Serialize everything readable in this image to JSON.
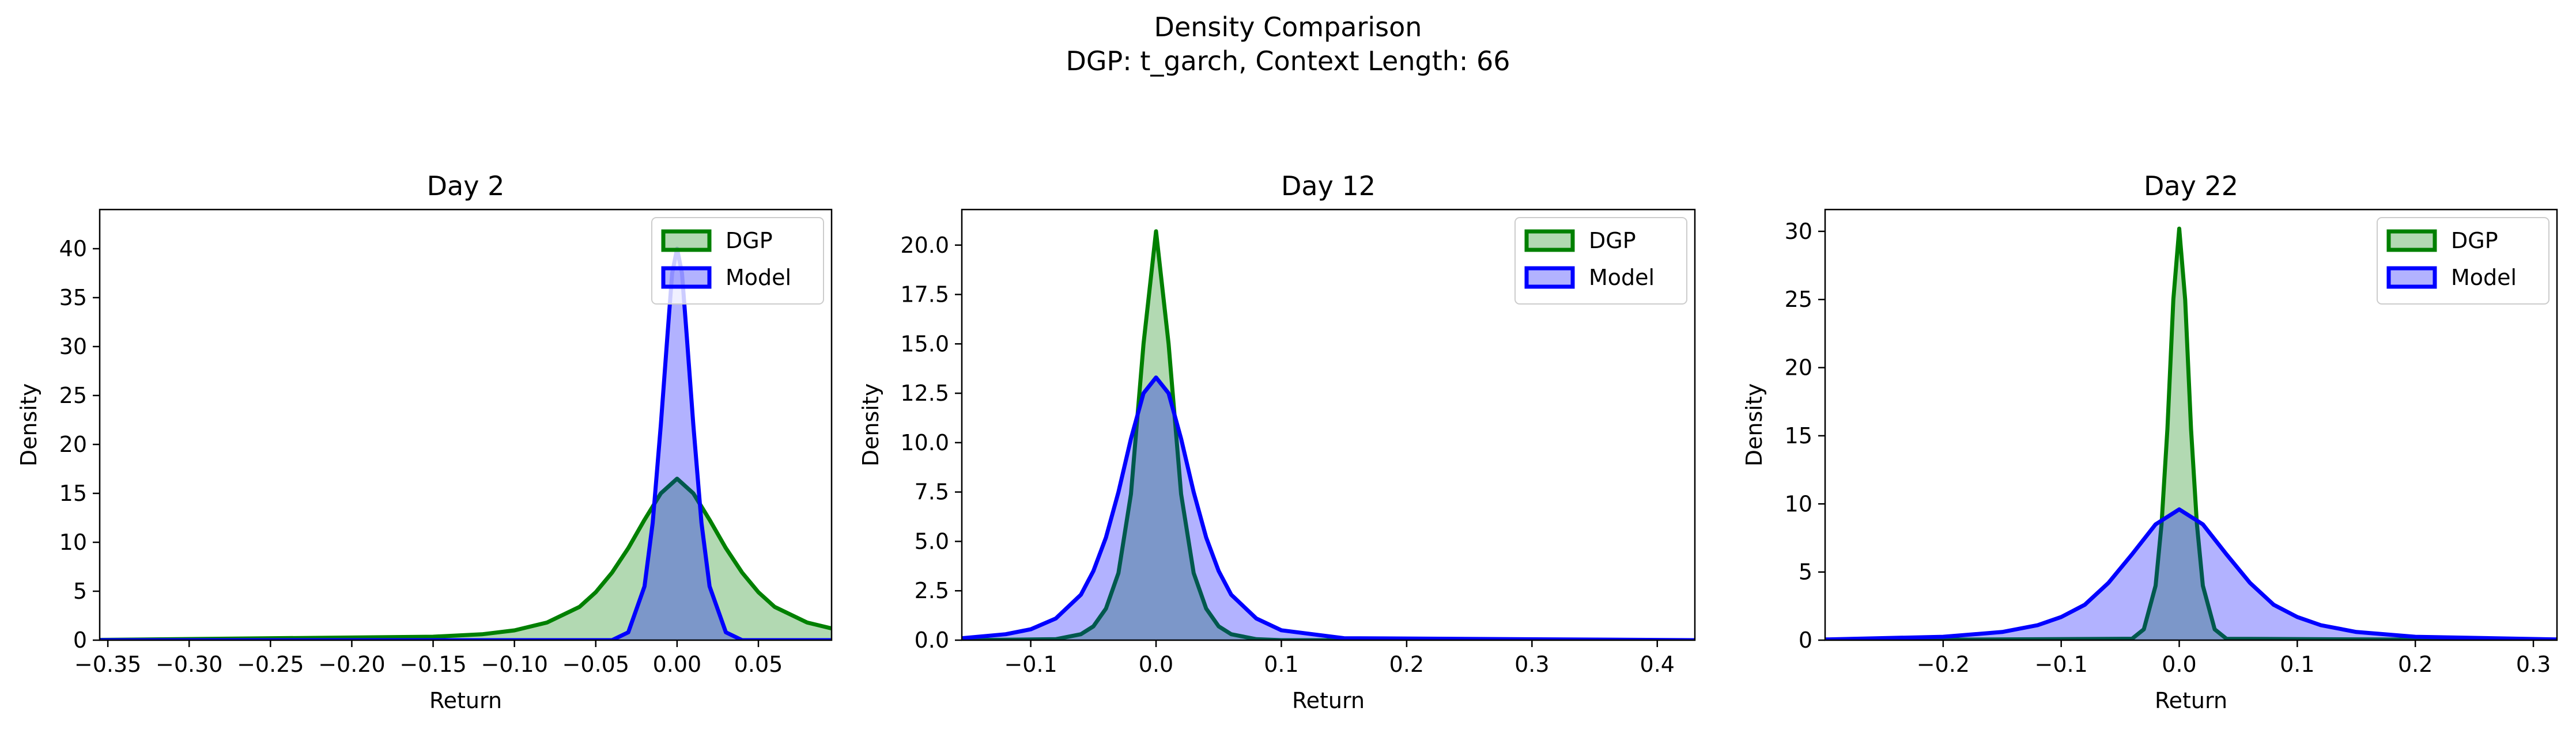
{
  "figure": {
    "title": "Density Comparison",
    "subtitle": "DGP: t_garch, Context Length: 66"
  },
  "chart_data": [
    {
      "type": "area",
      "title": "Day 2",
      "xlabel": "Return",
      "ylabel": "Density",
      "xlim": [
        -0.355,
        0.095
      ],
      "ylim": [
        0,
        44
      ],
      "xticks": [
        -0.35,
        -0.3,
        -0.25,
        -0.2,
        -0.15,
        -0.1,
        -0.05,
        0.0,
        0.05
      ],
      "xtick_labels": [
        "−0.35",
        "−0.30",
        "−0.25",
        "−0.20",
        "−0.15",
        "−0.10",
        "−0.05",
        "0.00",
        "0.05"
      ],
      "yticks": [
        0,
        5,
        10,
        15,
        20,
        25,
        30,
        35,
        40
      ],
      "ytick_labels": [
        "0",
        "5",
        "10",
        "15",
        "20",
        "25",
        "30",
        "35",
        "40"
      ],
      "legend": "upper right",
      "series": [
        {
          "name": "DGP",
          "color": "#008000",
          "fill": "#008000",
          "x": [
            -0.355,
            -0.15,
            -0.12,
            -0.1,
            -0.08,
            -0.06,
            -0.05,
            -0.04,
            -0.03,
            -0.02,
            -0.01,
            0.0,
            0.01,
            0.02,
            0.03,
            0.04,
            0.05,
            0.06,
            0.08,
            0.095
          ],
          "y": [
            0.03,
            0.35,
            0.6,
            1.0,
            1.8,
            3.4,
            4.9,
            6.9,
            9.4,
            12.3,
            15.0,
            16.5,
            15.0,
            12.3,
            9.4,
            6.9,
            4.9,
            3.4,
            1.8,
            1.2
          ]
        },
        {
          "name": "Model",
          "color": "#0000ff",
          "fill": "#0000ff",
          "x": [
            -0.355,
            -0.04,
            -0.03,
            -0.02,
            -0.015,
            -0.01,
            -0.006,
            -0.003,
            0.0,
            0.003,
            0.006,
            0.01,
            0.015,
            0.02,
            0.03,
            0.04,
            0.095
          ],
          "y": [
            0,
            0,
            0.8,
            5.5,
            12.0,
            22.0,
            31.0,
            37.5,
            40.0,
            37.5,
            31.0,
            22.0,
            12.0,
            5.5,
            0.8,
            0,
            0
          ]
        }
      ]
    },
    {
      "type": "area",
      "title": "Day 12",
      "xlabel": "Return",
      "ylabel": "Density",
      "xlim": [
        -0.155,
        0.43
      ],
      "ylim": [
        0,
        21.8
      ],
      "xticks": [
        -0.1,
        0.0,
        0.1,
        0.2,
        0.3,
        0.4
      ],
      "xtick_labels": [
        "−0.1",
        "0.0",
        "0.1",
        "0.2",
        "0.3",
        "0.4"
      ],
      "yticks": [
        0,
        2.5,
        5,
        7.5,
        10,
        12.5,
        15,
        17.5,
        20
      ],
      "ytick_labels": [
        "0.0",
        "2.5",
        "5.0",
        "7.5",
        "10.0",
        "12.5",
        "15.0",
        "17.5",
        "20.0"
      ],
      "legend": "upper right",
      "series": [
        {
          "name": "DGP",
          "color": "#008000",
          "fill": "#008000",
          "x": [
            -0.155,
            -0.08,
            -0.06,
            -0.05,
            -0.04,
            -0.03,
            -0.02,
            -0.01,
            0.0,
            0.01,
            0.02,
            0.03,
            0.04,
            0.05,
            0.06,
            0.08,
            0.1,
            0.43
          ],
          "y": [
            0,
            0.05,
            0.3,
            0.7,
            1.6,
            3.4,
            7.4,
            15.0,
            20.7,
            15.0,
            7.4,
            3.4,
            1.6,
            0.7,
            0.3,
            0.05,
            0,
            0
          ]
        },
        {
          "name": "Model",
          "color": "#0000ff",
          "fill": "#0000ff",
          "x": [
            -0.155,
            -0.12,
            -0.1,
            -0.08,
            -0.06,
            -0.05,
            -0.04,
            -0.03,
            -0.02,
            -0.01,
            0.0,
            0.01,
            0.02,
            0.03,
            0.04,
            0.05,
            0.06,
            0.08,
            0.1,
            0.15,
            0.43
          ],
          "y": [
            0.1,
            0.3,
            0.55,
            1.1,
            2.3,
            3.5,
            5.2,
            7.5,
            10.2,
            12.5,
            13.3,
            12.5,
            10.2,
            7.5,
            5.2,
            3.5,
            2.3,
            1.1,
            0.5,
            0.1,
            0
          ]
        }
      ]
    },
    {
      "type": "area",
      "title": "Day 22",
      "xlabel": "Return",
      "ylabel": "Density",
      "xlim": [
        -0.3,
        0.32
      ],
      "ylim": [
        0,
        31.6
      ],
      "xticks": [
        -0.2,
        -0.1,
        0.0,
        0.1,
        0.2,
        0.3
      ],
      "xtick_labels": [
        "−0.2",
        "−0.1",
        "0.0",
        "0.1",
        "0.2",
        "0.3"
      ],
      "yticks": [
        0,
        5,
        10,
        15,
        20,
        25,
        30
      ],
      "ytick_labels": [
        "0",
        "5",
        "10",
        "15",
        "20",
        "25",
        "30"
      ],
      "legend": "upper right",
      "series": [
        {
          "name": "DGP",
          "color": "#008000",
          "fill": "#008000",
          "x": [
            -0.3,
            -0.04,
            -0.03,
            -0.02,
            -0.015,
            -0.01,
            -0.005,
            0.0,
            0.005,
            0.01,
            0.015,
            0.02,
            0.03,
            0.04,
            0.32
          ],
          "y": [
            0,
            0.1,
            0.8,
            4.0,
            8.5,
            15.5,
            25.0,
            30.2,
            25.0,
            15.5,
            8.5,
            4.0,
            0.8,
            0.1,
            0
          ]
        },
        {
          "name": "Model",
          "color": "#0000ff",
          "fill": "#0000ff",
          "x": [
            -0.3,
            -0.2,
            -0.15,
            -0.12,
            -0.1,
            -0.08,
            -0.06,
            -0.04,
            -0.02,
            0.0,
            0.02,
            0.04,
            0.06,
            0.08,
            0.1,
            0.12,
            0.15,
            0.2,
            0.32
          ],
          "y": [
            0.05,
            0.25,
            0.6,
            1.1,
            1.7,
            2.6,
            4.2,
            6.3,
            8.5,
            9.6,
            8.5,
            6.3,
            4.2,
            2.6,
            1.7,
            1.1,
            0.6,
            0.25,
            0.05
          ]
        }
      ]
    }
  ]
}
